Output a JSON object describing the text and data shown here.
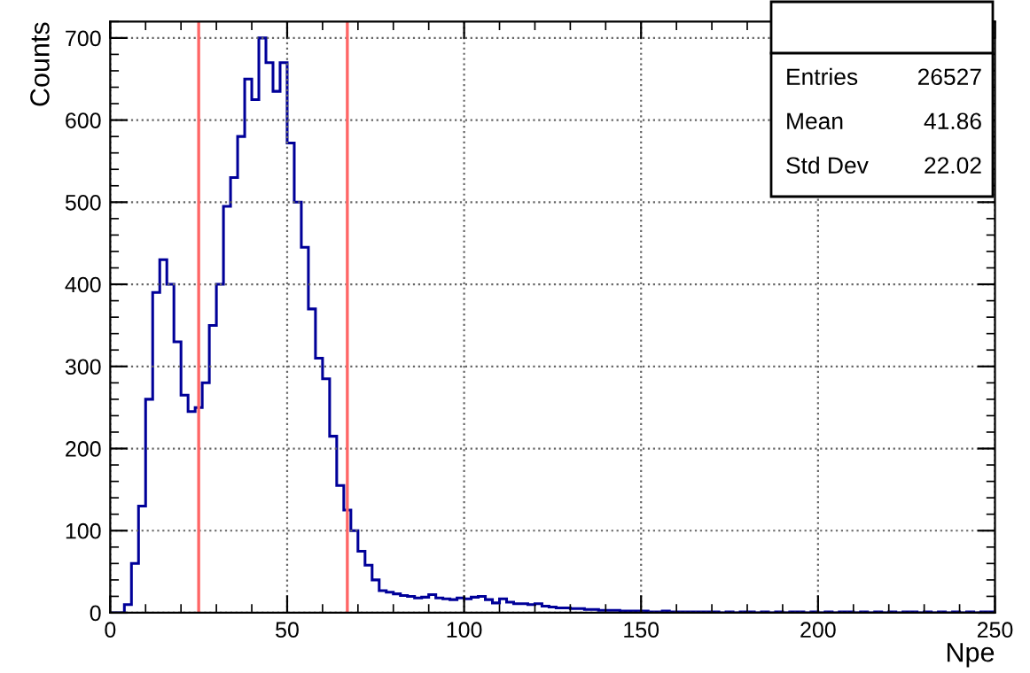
{
  "chart_data": {
    "type": "histogram",
    "xlabel": "Npe",
    "ylabel": "Counts",
    "bins": [
      0,
      2,
      4,
      6,
      8,
      10,
      12,
      14,
      16,
      18,
      20,
      22,
      24,
      26,
      28,
      30,
      32,
      34,
      36,
      38,
      40,
      42,
      44,
      46,
      48,
      50,
      52,
      54,
      56,
      58,
      60,
      62,
      64,
      66,
      68,
      70,
      72,
      74,
      76,
      78,
      80,
      82,
      84,
      86,
      88,
      90,
      92,
      94,
      96,
      98,
      100,
      102,
      104,
      106,
      108,
      110,
      112,
      114,
      116,
      118,
      120,
      122,
      124,
      126,
      128,
      130,
      132,
      134,
      136,
      138,
      140,
      142,
      144,
      146,
      148,
      150,
      152,
      154,
      156,
      158,
      160,
      162,
      164,
      166,
      168,
      170,
      172,
      174,
      176,
      178,
      180,
      182,
      184,
      186,
      188,
      190,
      192,
      194,
      196,
      198,
      200,
      202,
      204,
      206,
      208,
      210,
      212,
      214,
      216,
      218,
      220,
      222,
      224,
      226,
      228,
      230,
      232,
      234,
      236,
      238,
      240,
      242,
      244,
      246,
      248,
      250
    ],
    "values": [
      0,
      0,
      10,
      60,
      130,
      260,
      390,
      430,
      400,
      330,
      265,
      245,
      250,
      280,
      350,
      400,
      495,
      530,
      580,
      650,
      625,
      700,
      670,
      635,
      670,
      572,
      500,
      445,
      370,
      310,
      285,
      215,
      155,
      125,
      100,
      75,
      58,
      40,
      27,
      25,
      23,
      21,
      20,
      18,
      19,
      22,
      18,
      17,
      16,
      18,
      17,
      19,
      20,
      16,
      12,
      17,
      13,
      11,
      11,
      10,
      11,
      8,
      7,
      6,
      6,
      5,
      5,
      4,
      4,
      3,
      3,
      3,
      2,
      2,
      2,
      2,
      1,
      1,
      2,
      1,
      1,
      1,
      1,
      1,
      1,
      1,
      0,
      1,
      0,
      1,
      1,
      0,
      1,
      0,
      1,
      0,
      1,
      1,
      0,
      1,
      0,
      1,
      0,
      1,
      1,
      0,
      1,
      0,
      1,
      0,
      1,
      0,
      1,
      1,
      0,
      1,
      0,
      1,
      0,
      1,
      0,
      1,
      0,
      1,
      1
    ],
    "color": "#000099",
    "xlim": [
      0,
      250
    ],
    "ylim": [
      0,
      720
    ],
    "xticks": [
      0,
      50,
      100,
      150,
      200,
      250
    ],
    "yticks": [
      0,
      100,
      200,
      300,
      400,
      500,
      600,
      700
    ],
    "grid": true,
    "ref_lines": [
      {
        "axis": "x",
        "value": 25,
        "color": "#ff6666"
      },
      {
        "axis": "x",
        "value": 67,
        "color": "#ff6666"
      }
    ],
    "annotations": [
      "Entries",
      "26527",
      "Mean",
      "41.86",
      "Std Dev",
      "22.02"
    ]
  }
}
